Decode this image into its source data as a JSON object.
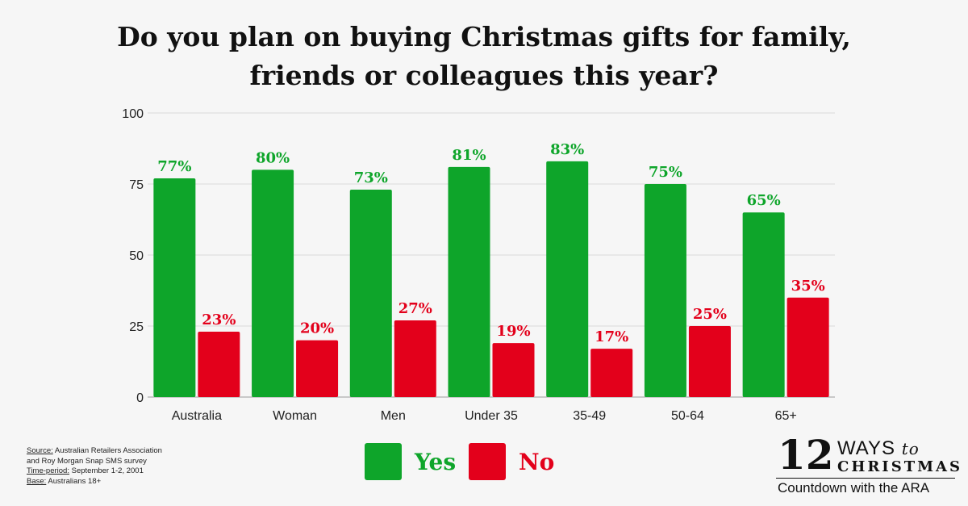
{
  "chart_data": {
    "type": "bar",
    "title_lines": [
      "Do you plan on buying Christmas gifts for family,",
      "friends or colleagues this year?"
    ],
    "categories": [
      "Australia",
      "Woman",
      "Men",
      "Under 35",
      "35-49",
      "50-64",
      "65+"
    ],
    "series": [
      {
        "name": "Yes",
        "color": "#0ea52a",
        "values": [
          77,
          80,
          73,
          81,
          83,
          75,
          65
        ],
        "labels": [
          "77%",
          "80%",
          "73%",
          "81%",
          "83%",
          "75%",
          "65%"
        ]
      },
      {
        "name": "No",
        "color": "#e3001b",
        "values": [
          23,
          20,
          27,
          19,
          17,
          25,
          35
        ],
        "labels": [
          "23%",
          "20%",
          "27%",
          "19%",
          "17%",
          "25%",
          "35%"
        ]
      }
    ],
    "ylim": [
      0,
      100
    ],
    "yticks": [
      0,
      25,
      50,
      75,
      100
    ],
    "grid": true,
    "legend_position": "bottom"
  },
  "source": {
    "label": "Source:",
    "text_a": " Australian Retailers Association",
    "text_b": "and Roy Morgan Snap SMS survey",
    "period_label": "Time-period:",
    "period_text": " September 1-2, 2001",
    "base_label": "Base:",
    "base_text": " Australians 18+"
  },
  "brand": {
    "number": "12",
    "ways": "WAYS",
    "to": "to",
    "christmas": "CHRISTMAS",
    "subtitle": "Countdown with the ARA"
  }
}
